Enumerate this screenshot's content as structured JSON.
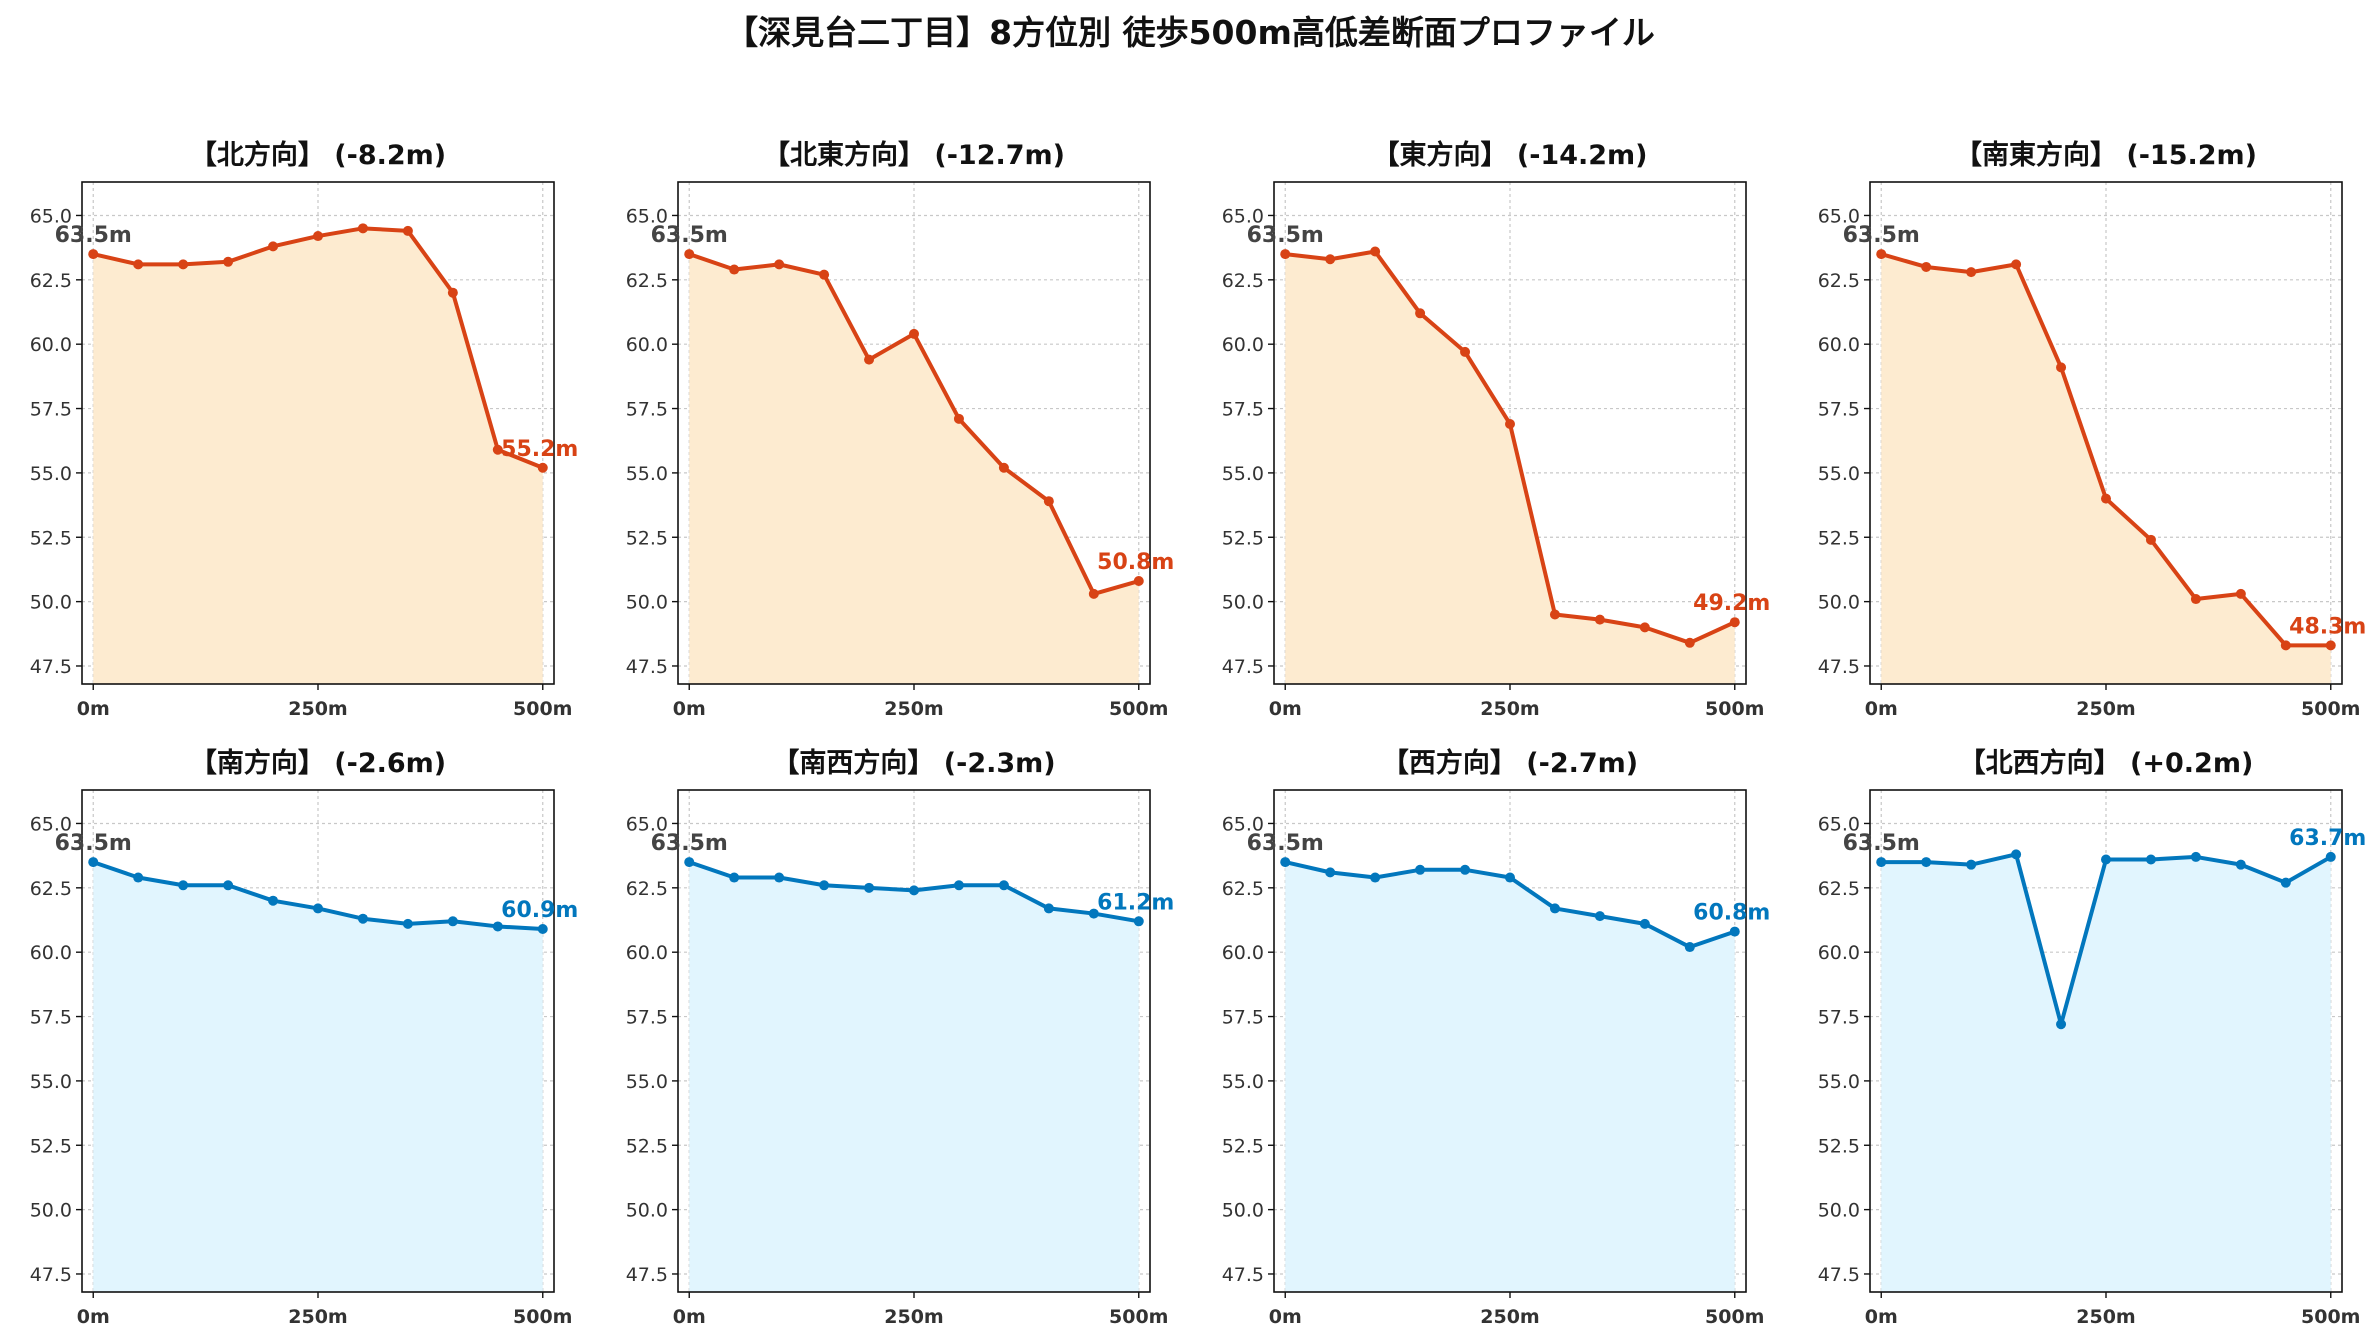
{
  "title": "【深見台二丁目】8方位別 徒歩500m高低差断面プロファイル",
  "chart_data": [
    {
      "type": "area",
      "title": "【北方向】 (-8.2m)",
      "color": "#d84315",
      "fill": "#fdebd0",
      "x": [
        0,
        50,
        100,
        150,
        200,
        250,
        300,
        350,
        400,
        450,
        500
      ],
      "values": [
        63.5,
        63.1,
        63.1,
        63.2,
        63.8,
        64.2,
        64.5,
        64.4,
        62.0,
        55.9,
        55.2
      ],
      "start_label": "63.5m",
      "end_label": "55.2m",
      "x_ticks": [
        "0m",
        "250m",
        "500m"
      ],
      "y_ticks": [
        "47.5",
        "50.0",
        "52.5",
        "55.0",
        "57.5",
        "60.0",
        "62.5",
        "65.0"
      ],
      "ylim": [
        46.8,
        66.3
      ],
      "grid": true
    },
    {
      "type": "area",
      "title": "【北東方向】 (-12.7m)",
      "color": "#d84315",
      "fill": "#fdebd0",
      "x": [
        0,
        50,
        100,
        150,
        200,
        250,
        300,
        350,
        400,
        450,
        500
      ],
      "values": [
        63.5,
        62.9,
        63.1,
        62.7,
        59.4,
        60.4,
        57.1,
        55.2,
        53.9,
        50.3,
        50.8
      ],
      "start_label": "63.5m",
      "end_label": "50.8m",
      "x_ticks": [
        "0m",
        "250m",
        "500m"
      ],
      "y_ticks": [
        "47.5",
        "50.0",
        "52.5",
        "55.0",
        "57.5",
        "60.0",
        "62.5",
        "65.0"
      ],
      "ylim": [
        46.8,
        66.3
      ],
      "grid": true
    },
    {
      "type": "area",
      "title": "【東方向】 (-14.2m)",
      "color": "#d84315",
      "fill": "#fdebd0",
      "x": [
        0,
        50,
        100,
        150,
        200,
        250,
        300,
        350,
        400,
        450,
        500
      ],
      "values": [
        63.5,
        63.3,
        63.6,
        61.2,
        59.7,
        56.9,
        49.5,
        49.3,
        49.0,
        48.4,
        49.2
      ],
      "start_label": "63.5m",
      "end_label": "49.2m",
      "x_ticks": [
        "0m",
        "250m",
        "500m"
      ],
      "y_ticks": [
        "47.5",
        "50.0",
        "52.5",
        "55.0",
        "57.5",
        "60.0",
        "62.5",
        "65.0"
      ],
      "ylim": [
        46.8,
        66.3
      ],
      "grid": true
    },
    {
      "type": "area",
      "title": "【南東方向】 (-15.2m)",
      "color": "#d84315",
      "fill": "#fdebd0",
      "x": [
        0,
        50,
        100,
        150,
        200,
        250,
        300,
        350,
        400,
        450,
        500
      ],
      "values": [
        63.5,
        63.0,
        62.8,
        63.1,
        59.1,
        54.0,
        52.4,
        50.1,
        50.3,
        48.3,
        48.3
      ],
      "start_label": "63.5m",
      "end_label": "48.3m",
      "x_ticks": [
        "0m",
        "250m",
        "500m"
      ],
      "y_ticks": [
        "47.5",
        "50.0",
        "52.5",
        "55.0",
        "57.5",
        "60.0",
        "62.5",
        "65.0"
      ],
      "ylim": [
        46.8,
        66.3
      ],
      "grid": true
    },
    {
      "type": "area",
      "title": "【南方向】 (-2.6m)",
      "color": "#0277bd",
      "fill": "#e1f5fe",
      "x": [
        0,
        50,
        100,
        150,
        200,
        250,
        300,
        350,
        400,
        450,
        500
      ],
      "values": [
        63.5,
        62.9,
        62.6,
        62.6,
        62.0,
        61.7,
        61.3,
        61.1,
        61.2,
        61.0,
        60.9
      ],
      "start_label": "63.5m",
      "end_label": "60.9m",
      "x_ticks": [
        "0m",
        "250m",
        "500m"
      ],
      "y_ticks": [
        "47.5",
        "50.0",
        "52.5",
        "55.0",
        "57.5",
        "60.0",
        "62.5",
        "65.0"
      ],
      "ylim": [
        46.8,
        66.3
      ],
      "grid": true
    },
    {
      "type": "area",
      "title": "【南西方向】 (-2.3m)",
      "color": "#0277bd",
      "fill": "#e1f5fe",
      "x": [
        0,
        50,
        100,
        150,
        200,
        250,
        300,
        350,
        400,
        450,
        500
      ],
      "values": [
        63.5,
        62.9,
        62.9,
        62.6,
        62.5,
        62.4,
        62.6,
        62.6,
        61.7,
        61.5,
        61.2
      ],
      "start_label": "63.5m",
      "end_label": "61.2m",
      "x_ticks": [
        "0m",
        "250m",
        "500m"
      ],
      "y_ticks": [
        "47.5",
        "50.0",
        "52.5",
        "55.0",
        "57.5",
        "60.0",
        "62.5",
        "65.0"
      ],
      "ylim": [
        46.8,
        66.3
      ],
      "grid": true
    },
    {
      "type": "area",
      "title": "【西方向】 (-2.7m)",
      "color": "#0277bd",
      "fill": "#e1f5fe",
      "x": [
        0,
        50,
        100,
        150,
        200,
        250,
        300,
        350,
        400,
        450,
        500
      ],
      "values": [
        63.5,
        63.1,
        62.9,
        63.2,
        63.2,
        62.9,
        61.7,
        61.4,
        61.1,
        60.2,
        60.8
      ],
      "start_label": "63.5m",
      "end_label": "60.8m",
      "x_ticks": [
        "0m",
        "250m",
        "500m"
      ],
      "y_ticks": [
        "47.5",
        "50.0",
        "52.5",
        "55.0",
        "57.5",
        "60.0",
        "62.5",
        "65.0"
      ],
      "ylim": [
        46.8,
        66.3
      ],
      "grid": true
    },
    {
      "type": "area",
      "title": "【北西方向】 (+0.2m)",
      "color": "#0277bd",
      "fill": "#e1f5fe",
      "x": [
        0,
        50,
        100,
        150,
        200,
        250,
        300,
        350,
        400,
        450,
        500
      ],
      "values": [
        63.5,
        63.5,
        63.4,
        63.8,
        57.2,
        63.6,
        63.6,
        63.7,
        63.4,
        62.7,
        63.7
      ],
      "start_label": "63.5m",
      "end_label": "63.7m",
      "x_ticks": [
        "0m",
        "250m",
        "500m"
      ],
      "y_ticks": [
        "47.5",
        "50.0",
        "52.5",
        "55.0",
        "57.5",
        "60.0",
        "62.5",
        "65.0"
      ],
      "ylim": [
        46.8,
        66.3
      ],
      "grid": true
    }
  ]
}
